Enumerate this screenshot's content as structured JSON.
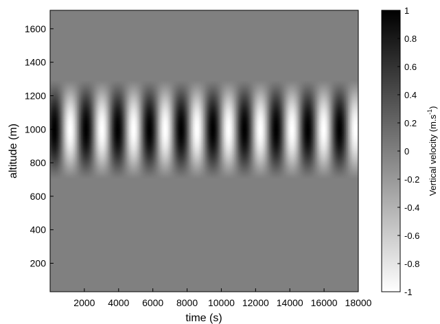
{
  "chart_data": {
    "type": "heatmap",
    "title": "",
    "xlabel": "time (s)",
    "ylabel": "altitude (m)",
    "xlim": [
      0,
      18000
    ],
    "ylim": [
      30,
      1710
    ],
    "x_ticks": [
      2000,
      4000,
      6000,
      8000,
      10000,
      12000,
      14000,
      16000,
      18000
    ],
    "y_ticks": [
      200,
      400,
      600,
      800,
      1000,
      1200,
      1400,
      1600
    ],
    "colorbar": {
      "label": "Vertical velocity (m.s",
      "label_superscript": "-1",
      "label_suffix": ")",
      "range": [
        -1,
        1
      ],
      "ticks": [
        1,
        0.8,
        0.6,
        0.4,
        0.2,
        0,
        -0.2,
        -0.4,
        -0.6,
        -0.8,
        -1
      ],
      "colormap": "gray (white = -1, black = 1)"
    },
    "field": {
      "description": "vertical velocity oscillating in time, confined in altitude",
      "period_s": 1850,
      "phase_peak_time_s": 250,
      "amplitude": 1,
      "layer_center_m": 1000,
      "layer_bottom_m": 700,
      "layer_top_m": 1300,
      "background_value": 0
    }
  },
  "colors": {
    "background": "#ffffff",
    "axis": "#000000",
    "plot_background": "#808080"
  }
}
